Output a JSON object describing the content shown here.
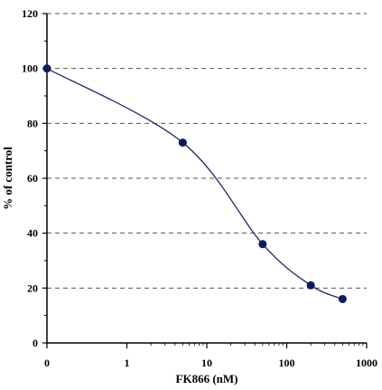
{
  "chart_data": {
    "type": "line",
    "xlabel": "FK866 (nM)",
    "ylabel": "% of control",
    "x_scale": "log",
    "x_ticks": [
      "0",
      "1",
      "10",
      "100",
      "1000"
    ],
    "y_ticks": [
      "0",
      "20",
      "40",
      "60",
      "80",
      "100",
      "120"
    ],
    "ylim": [
      0,
      120
    ],
    "grid": "horizontal dashed",
    "series": [
      {
        "x": [
          0,
          5,
          50,
          200,
          500
        ],
        "y": [
          100,
          73,
          36,
          21,
          16
        ]
      }
    ],
    "colors": {
      "line": "#1f2a6b",
      "marker": "#0d1a5c"
    }
  }
}
